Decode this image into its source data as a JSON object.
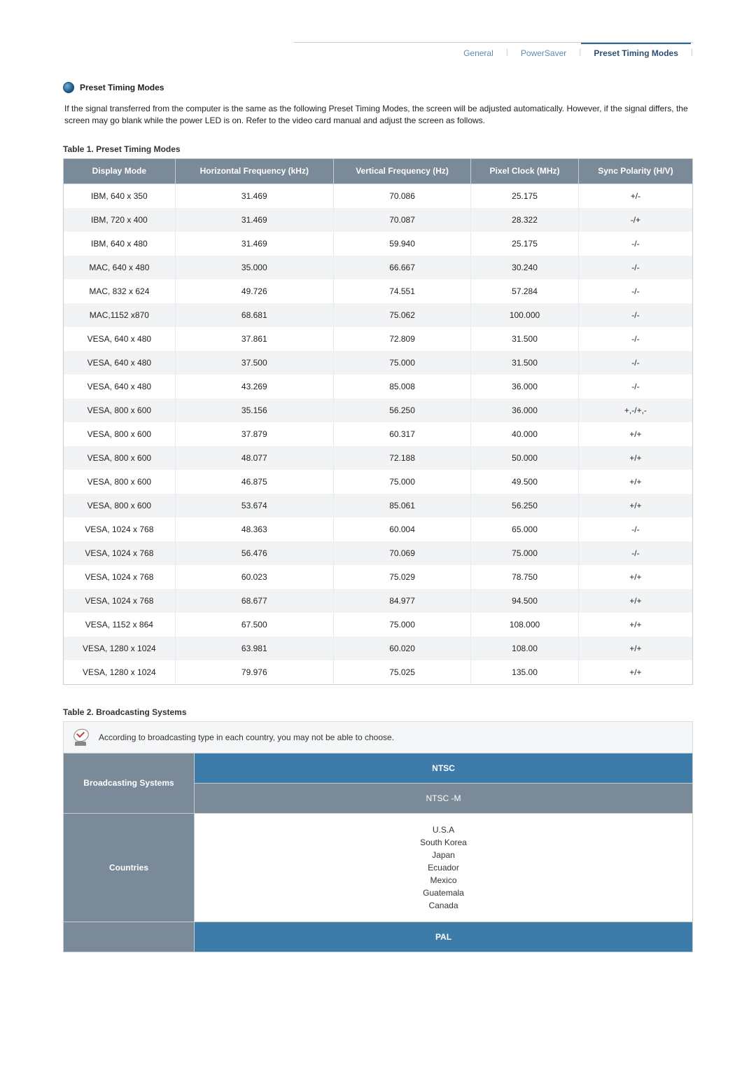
{
  "tabs": {
    "items": [
      "General",
      "PowerSaver",
      "Preset Timing Modes"
    ],
    "active_index": 2
  },
  "section": {
    "title": "Preset Timing Modes",
    "intro": "If the signal transferred from the computer is the same as the following Preset Timing Modes, the screen will be adjusted automatically. However, if the signal differs, the screen may go blank while the power LED is on. Refer to the video card manual and adjust the screen as follows."
  },
  "table1": {
    "caption": "Table 1. Preset Timing Modes",
    "columns": [
      "Display Mode",
      "Horizontal Frequency (kHz)",
      "Vertical Frequency (Hz)",
      "Pixel Clock (MHz)",
      "Sync Polarity (H/V)"
    ],
    "rows": [
      [
        "IBM, 640 x 350",
        "31.469",
        "70.086",
        "25.175",
        "+/-"
      ],
      [
        "IBM, 720 x 400",
        "31.469",
        "70.087",
        "28.322",
        "-/+"
      ],
      [
        "IBM, 640 x 480",
        "31.469",
        "59.940",
        "25.175",
        "-/-"
      ],
      [
        "MAC, 640 x 480",
        "35.000",
        "66.667",
        "30.240",
        "-/-"
      ],
      [
        "MAC, 832 x 624",
        "49.726",
        "74.551",
        "57.284",
        "-/-"
      ],
      [
        "MAC,1152 x870",
        "68.681",
        "75.062",
        "100.000",
        "-/-"
      ],
      [
        "VESA, 640 x 480",
        "37.861",
        "72.809",
        "31.500",
        "-/-"
      ],
      [
        "VESA, 640 x 480",
        "37.500",
        "75.000",
        "31.500",
        "-/-"
      ],
      [
        "VESA, 640 x 480",
        "43.269",
        "85.008",
        "36.000",
        "-/-"
      ],
      [
        "VESA, 800 x 600",
        "35.156",
        "56.250",
        "36.000",
        "+,-/+,-"
      ],
      [
        "VESA, 800 x 600",
        "37.879",
        "60.317",
        "40.000",
        "+/+"
      ],
      [
        "VESA, 800 x 600",
        "48.077",
        "72.188",
        "50.000",
        "+/+"
      ],
      [
        "VESA, 800 x 600",
        "46.875",
        "75.000",
        "49.500",
        "+/+"
      ],
      [
        "VESA, 800 x 600",
        "53.674",
        "85.061",
        "56.250",
        "+/+"
      ],
      [
        "VESA, 1024 x 768",
        "48.363",
        "60.004",
        "65.000",
        "-/-"
      ],
      [
        "VESA, 1024 x 768",
        "56.476",
        "70.069",
        "75.000",
        "-/-"
      ],
      [
        "VESA, 1024 x 768",
        "60.023",
        "75.029",
        "78.750",
        "+/+"
      ],
      [
        "VESA, 1024 x 768",
        "68.677",
        "84.977",
        "94.500",
        "+/+"
      ],
      [
        "VESA, 1152 x 864",
        "67.500",
        "75.000",
        "108.000",
        "+/+"
      ],
      [
        "VESA, 1280 x 1024",
        "63.981",
        "60.020",
        "108.00",
        "+/+"
      ],
      [
        "VESA, 1280 x 1024",
        "79.976",
        "75.025",
        "135.00",
        "+/+"
      ]
    ],
    "header_bg": "#7b8a99",
    "header_fg": "#ffffff",
    "row_alt_bg": "#f1f3f5",
    "border_color": "#c8cdd2"
  },
  "table2": {
    "caption": "Table 2. Broadcasting Systems",
    "note": "According to broadcasting type in each country, you may not be able to choose.",
    "row_labels": {
      "systems": "Broadcasting Systems",
      "countries": "Countries"
    },
    "group1": {
      "primary": "NTSC",
      "secondary": "NTSC -M",
      "countries": [
        "U.S.A",
        "South Korea",
        "Japan",
        "Ecuador",
        "Mexico",
        "Guatemala",
        "Canada"
      ]
    },
    "group2": {
      "primary": "PAL"
    },
    "primary_bg": "#3d7ca8",
    "secondary_bg": "#7b8a99",
    "label_bg": "#7b8a99"
  }
}
